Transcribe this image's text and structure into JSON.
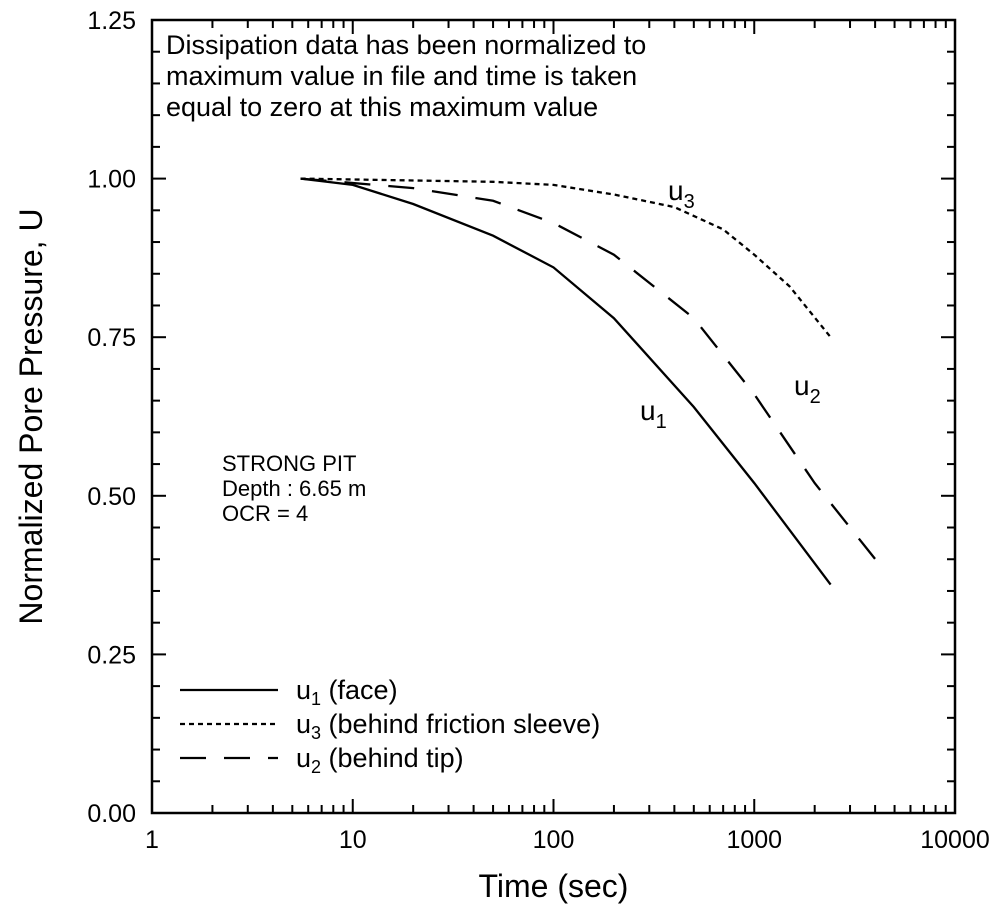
{
  "chart_data": {
    "type": "line",
    "title": "",
    "xlabel": "Time  (sec)",
    "ylabel": "Normalized Pore Pressure, U",
    "xscale": "log",
    "xlim": [
      1,
      10000
    ],
    "ylim": [
      0,
      1.25
    ],
    "xticks": [
      {
        "v": 1,
        "label": "1"
      },
      {
        "v": 10,
        "label": "10"
      },
      {
        "v": 100,
        "label": "100"
      },
      {
        "v": 1000,
        "label": "1000"
      },
      {
        "v": 10000,
        "label": "10000"
      }
    ],
    "yticks": [
      {
        "v": 0,
        "label": "0.00"
      },
      {
        "v": 0.25,
        "label": "0.25"
      },
      {
        "v": 0.5,
        "label": "0.50"
      },
      {
        "v": 0.75,
        "label": "0.75"
      },
      {
        "v": 1.0,
        "label": "1.00"
      },
      {
        "v": 1.25,
        "label": "1.25"
      }
    ],
    "grid": false,
    "annotation": [
      "Dissipation data has been normalized to",
      "maximum value in file and time is taken",
      "equal to zero at this maximum value"
    ],
    "site_info": [
      "STRONG PIT",
      "Depth : 6.65 m",
      "OCR = 4"
    ],
    "legend_placement": "bottom-left",
    "series": [
      {
        "name": "u1",
        "label_main": "u",
        "label_sub": "1",
        "legend": "(face)",
        "style": "solid",
        "x": [
          5.5,
          10,
          20,
          50,
          100,
          200,
          500,
          1000,
          2400
        ],
        "y": [
          1.0,
          0.99,
          0.96,
          0.91,
          0.86,
          0.78,
          0.64,
          0.52,
          0.36
        ]
      },
      {
        "name": "u3",
        "label_main": "u",
        "label_sub": "3",
        "legend": "(behind friction sleeve)",
        "style": "dotted",
        "x": [
          5.5,
          50,
          100,
          200,
          400,
          700,
          1000,
          1500,
          2400
        ],
        "y": [
          1.0,
          0.995,
          0.99,
          0.975,
          0.955,
          0.92,
          0.88,
          0.83,
          0.75
        ]
      },
      {
        "name": "u2",
        "label_main": "u",
        "label_sub": "2",
        "legend": "(behind tip)",
        "style": "dashed",
        "x": [
          5.5,
          20,
          50,
          100,
          200,
          500,
          1000,
          2000,
          4500
        ],
        "y": [
          1.0,
          0.985,
          0.965,
          0.93,
          0.88,
          0.78,
          0.66,
          0.52,
          0.38
        ]
      }
    ]
  }
}
